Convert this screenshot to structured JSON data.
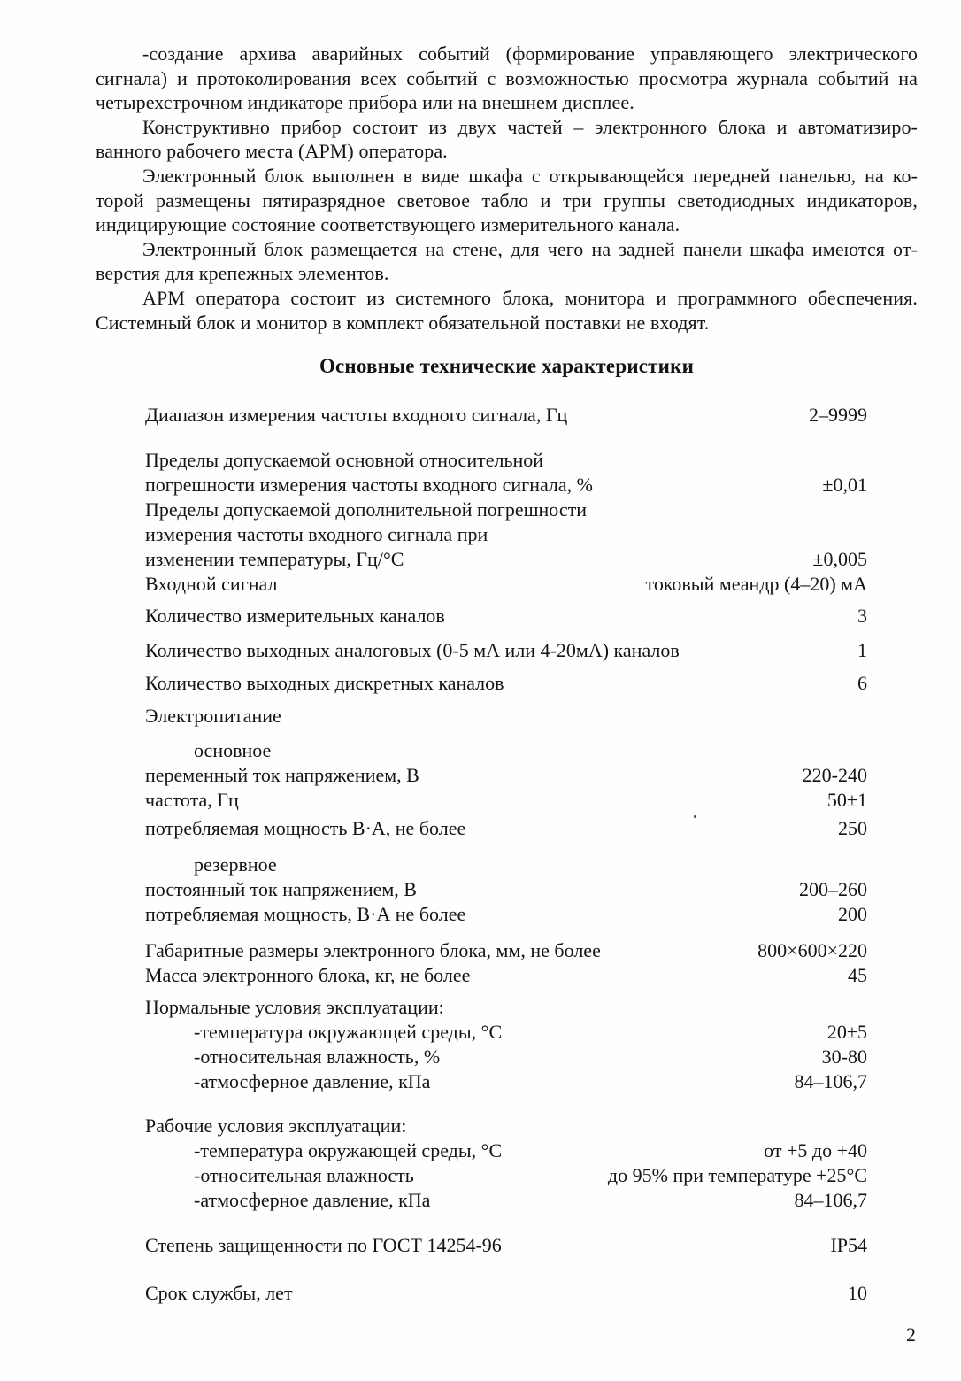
{
  "page": {
    "number": "2",
    "title": "Основные технические характеристики",
    "paragraphs": [
      {
        "lines": [
          {
            "text": "-создание архива аварийных событий (формирование управляющего электрического",
            "indent": true,
            "justify": true
          },
          {
            "text": "сигнала) и протоколирования всех событий с возможностью просмотра журнала событий на",
            "indent": false,
            "justify": true
          },
          {
            "text": "четырехстрочном индикаторе прибора или на внешнем дисплее.",
            "indent": false,
            "justify": false
          }
        ]
      },
      {
        "lines": [
          {
            "text": "Конструктивно прибор состоит из двух частей – электронного блока и автоматизиро-",
            "indent": true,
            "justify": true
          },
          {
            "text": "ванного рабочего места (АРМ) оператора.",
            "indent": false,
            "justify": false
          }
        ]
      },
      {
        "lines": [
          {
            "text": "Электронный блок выполнен в виде шкафа с открывающейся передней панелью, на ко-",
            "indent": true,
            "justify": true
          },
          {
            "text": "торой размещены пятиразрядное световое табло и три группы светодиодных индикаторов,",
            "indent": false,
            "justify": true
          },
          {
            "text": "индицирующие состояние соответствующего измерительного канала.",
            "indent": false,
            "justify": false
          }
        ]
      },
      {
        "lines": [
          {
            "text": "Электронный блок размещается на стене, для чего на задней панели шкафа имеются от-",
            "indent": true,
            "justify": true
          },
          {
            "text": "верстия для крепежных элементов.",
            "indent": false,
            "justify": false
          }
        ]
      },
      {
        "lines": [
          {
            "text": "АРМ оператора состоит из системного блока, монитора и программного обеспечения.",
            "indent": true,
            "justify": true
          },
          {
            "text": "Системный блок и монитор в комплект обязательной поставки не входят.",
            "indent": false,
            "justify": false
          }
        ]
      }
    ],
    "specs": [
      {
        "label": "Диапазон измерения частоты входного сигнала, Гц",
        "value": "2–9999",
        "indent": false,
        "mt": 0
      },
      {
        "label": "Пределы допускаемой основной относительной",
        "value": "",
        "indent": false,
        "mt": 23
      },
      {
        "label": "погрешности измерения частоты входного сигнала, %",
        "value": "±0,01",
        "indent": false,
        "mt": 0
      },
      {
        "label": "Пределы допускаемой дополнительной погрешности",
        "value": "",
        "indent": false,
        "mt": 0
      },
      {
        "label": "измерения частоты входного сигнала при",
        "value": "",
        "indent": false,
        "mt": 0
      },
      {
        "label": "изменении температуры, Гц/°С",
        "value": "±0,005",
        "indent": false,
        "mt": 0
      },
      {
        "label": "Входной сигнал",
        "value": "токовый меандр (4–20) мА",
        "indent": false,
        "mt": 0
      },
      {
        "label": "Количество измерительных каналов",
        "value": "3",
        "indent": false,
        "mt": 8
      },
      {
        "label": "Количество выходных аналоговых (0-5 мА или 4-20мА) каналов",
        "value": "1",
        "indent": false,
        "mt": 11
      },
      {
        "label": "Количество выходных дискретных каналов",
        "value": "6",
        "indent": false,
        "mt": 9
      },
      {
        "label": "Электропитание",
        "value": "",
        "indent": false,
        "mt": 9
      },
      {
        "label": "основное",
        "value": "",
        "indent": true,
        "mt": 11
      },
      {
        "label": "переменный ток напряжением, В",
        "value": "220-240",
        "indent": false,
        "mt": 0
      },
      {
        "label": "частота, Гц",
        "value": "50±1",
        "indent": false,
        "mt": 0
      },
      {
        "label": "потребляемая мощность В·А, не более",
        "value": "250",
        "indent": false,
        "mt": 4
      },
      {
        "label": "резервное",
        "value": "",
        "indent": true,
        "mt": 13
      },
      {
        "label": "постоянный ток напряжением, В",
        "value": "200–260",
        "indent": false,
        "mt": 0
      },
      {
        "label": "потребляемая мощность, В·А не более",
        "value": "200",
        "indent": false,
        "mt": 0
      },
      {
        "label": "Габаритные размеры электронного блока, мм, не более",
        "value": "800×600×220",
        "indent": false,
        "mt": 13
      },
      {
        "label": "Масса электронного блока, кг, не более",
        "value": "45",
        "indent": false,
        "mt": 0
      },
      {
        "label": "Нормальные условия эксплуатации:",
        "value": "",
        "indent": false,
        "mt": 8
      },
      {
        "label": "-температура окружающей среды, °С",
        "value": "20±5",
        "indent": true,
        "mt": 0
      },
      {
        "label": "-относительная влажность, %",
        "value": "30-80",
        "indent": true,
        "mt": 0
      },
      {
        "label": "-атмосферное давление, кПа",
        "value": "84–106,7",
        "indent": true,
        "mt": 0
      },
      {
        "label": "Рабочие условия эксплуатации:",
        "value": "",
        "indent": false,
        "mt": 22
      },
      {
        "label": "-температура окружающей среды, °С",
        "value": "от +5 до +40",
        "indent": true,
        "mt": 0
      },
      {
        "label": "-относительная влажность",
        "value": "до 95% при температуре +25°С",
        "indent": true,
        "mt": 0
      },
      {
        "label": "-атмосферное давление, кПа",
        "value": "84–106,7",
        "indent": true,
        "mt": 0
      },
      {
        "label": "Степень защищенности по ГОСТ 14254-96",
        "value": "IP54",
        "indent": false,
        "mt": 23
      },
      {
        "label": "Срок службы, лет",
        "value": "10",
        "indent": false,
        "mt": 26
      }
    ]
  }
}
